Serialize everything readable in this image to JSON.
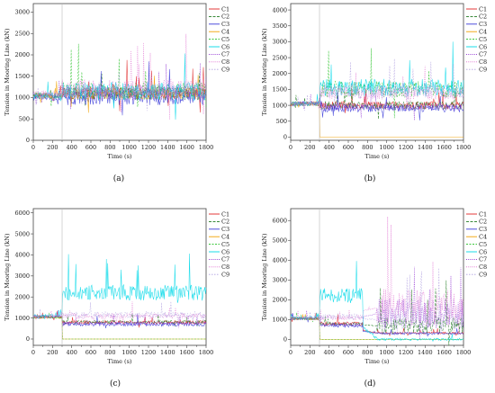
{
  "figure": {
    "series_colors": {
      "C1": "#e02424",
      "C2": "#1e7a1e",
      "C3": "#3a3ad8",
      "C4": "#f0a000",
      "C5": "#22c022",
      "C6": "#00d8e8",
      "C7": "#8c2ad0",
      "C8": "#e070d0",
      "C9": "#b0a0e0"
    }
  },
  "chart_data": [
    {
      "panel": "(a)",
      "type": "line",
      "xlabel": "Time (s)",
      "ylabel": "Tension in Mooring Line (kN)",
      "xlim": [
        0,
        1800
      ],
      "ylim": [
        0,
        3200
      ],
      "xticks": [
        0,
        100,
        200,
        300,
        400,
        500,
        600,
        700,
        800,
        900,
        1000,
        1100,
        1200,
        1300,
        1400,
        1500,
        1600,
        1700,
        1800
      ],
      "xtick_labels": [
        "0",
        "200",
        "400",
        "600",
        "800",
        "1000",
        "1200",
        "1400",
        "1600",
        "1800"
      ],
      "yticks": [
        0,
        500,
        1000,
        1500,
        2000,
        2500,
        3000
      ],
      "event_line_x": 300,
      "legend": [
        "C1",
        "C2",
        "C3",
        "C4",
        "C5",
        "C6",
        "C7",
        "C8",
        "C9"
      ],
      "series": [
        {
          "name": "C1",
          "base": 1100,
          "pre": 1050,
          "amp": 140
        },
        {
          "name": "C2",
          "base": 1100,
          "pre": 1050,
          "amp": 160
        },
        {
          "name": "C3",
          "base": 1000,
          "pre": 1000,
          "amp": 180
        },
        {
          "name": "C4",
          "base": 1100,
          "pre": 1050,
          "amp": 140
        },
        {
          "name": "C5",
          "base": 1150,
          "pre": 1050,
          "amp": 200
        },
        {
          "name": "C6",
          "base": 1150,
          "pre": 1050,
          "amp": 210
        },
        {
          "name": "C7",
          "base": 1100,
          "pre": 1050,
          "amp": 160
        },
        {
          "name": "C8",
          "base": 1200,
          "pre": 1100,
          "amp": 230
        },
        {
          "name": "C9",
          "base": 1150,
          "pre": 1050,
          "amp": 180
        }
      ]
    },
    {
      "panel": "(b)",
      "type": "line",
      "xlabel": "Time (s)",
      "ylabel": "Tension in Mooring Line (kN)",
      "xlim": [
        0,
        1800
      ],
      "ylim": [
        -100,
        4200
      ],
      "xticks": [
        0,
        100,
        200,
        300,
        400,
        500,
        600,
        700,
        800,
        900,
        1000,
        1100,
        1200,
        1300,
        1400,
        1500,
        1600,
        1700,
        1800
      ],
      "xtick_labels": [
        "0",
        "200",
        "400",
        "600",
        "800",
        "1000",
        "1200",
        "1400",
        "1600",
        "1800"
      ],
      "yticks": [
        0,
        500,
        1000,
        1500,
        2000,
        2500,
        3000,
        3500,
        4000
      ],
      "event_line_x": 300,
      "legend": [
        "C1",
        "C2",
        "C3",
        "C4",
        "C5",
        "C6",
        "C7",
        "C8",
        "C9"
      ],
      "series": [
        {
          "name": "C1",
          "base": 1000,
          "pre": 1050,
          "amp": 120
        },
        {
          "name": "C2",
          "base": 1000,
          "pre": 1050,
          "amp": 130
        },
        {
          "name": "C3",
          "base": 900,
          "pre": 1050,
          "amp": 120
        },
        {
          "name": "C4",
          "base": 0,
          "pre": 1050,
          "amp": 0
        },
        {
          "name": "C5",
          "base": 1500,
          "pre": 1050,
          "amp": 260
        },
        {
          "name": "C6",
          "base": 1550,
          "pre": 1050,
          "amp": 280
        },
        {
          "name": "C7",
          "base": 950,
          "pre": 1050,
          "amp": 120
        },
        {
          "name": "C8",
          "base": 1400,
          "pre": 1050,
          "amp": 220
        },
        {
          "name": "C9",
          "base": 1450,
          "pre": 1050,
          "amp": 240
        }
      ]
    },
    {
      "panel": "(c)",
      "type": "line",
      "xlabel": "Time (s)",
      "ylabel": "Tension in Mooring Line (kN)",
      "xlim": [
        0,
        1800
      ],
      "ylim": [
        -300,
        6200
      ],
      "xticks": [
        0,
        100,
        200,
        300,
        400,
        500,
        600,
        700,
        800,
        900,
        1000,
        1100,
        1200,
        1300,
        1400,
        1500,
        1600,
        1700,
        1800
      ],
      "xtick_labels": [
        "0",
        "200",
        "400",
        "600",
        "800",
        "1000",
        "1200",
        "1400",
        "1600",
        "1800"
      ],
      "yticks": [
        0,
        1000,
        2000,
        3000,
        4000,
        5000,
        6000
      ],
      "event_line_x": 300,
      "legend": [
        "C1",
        "C2",
        "C3",
        "C4",
        "C5",
        "C6",
        "C7",
        "C8",
        "C9"
      ],
      "series": [
        {
          "name": "C1",
          "base": 800,
          "pre": 1050,
          "amp": 90
        },
        {
          "name": "C2",
          "base": 800,
          "pre": 1050,
          "amp": 90
        },
        {
          "name": "C3",
          "base": 700,
          "pre": 1050,
          "amp": 90
        },
        {
          "name": "C4",
          "base": 0,
          "pre": 1050,
          "amp": 0
        },
        {
          "name": "C5",
          "base": 0,
          "pre": 1050,
          "amp": 0
        },
        {
          "name": "C6",
          "base": 2200,
          "pre": 1100,
          "amp": 380
        },
        {
          "name": "C7",
          "base": 750,
          "pre": 1050,
          "amp": 90
        },
        {
          "name": "C8",
          "base": 1100,
          "pre": 1100,
          "amp": 140
        },
        {
          "name": "C9",
          "base": 1150,
          "pre": 1100,
          "amp": 150
        }
      ]
    },
    {
      "panel": "(d)",
      "type": "line",
      "xlabel": "Time (s)",
      "ylabel": "Tension in Mooring Line (kN)",
      "xlim": [
        0,
        1800
      ],
      "ylim": [
        -300,
        6600
      ],
      "xticks": [
        0,
        100,
        200,
        300,
        400,
        500,
        600,
        700,
        800,
        900,
        1000,
        1100,
        1200,
        1300,
        1400,
        1500,
        1600,
        1700,
        1800
      ],
      "xtick_labels": [
        "0",
        "200",
        "400",
        "600",
        "800",
        "1000",
        "1200",
        "1400",
        "1600",
        "1800"
      ],
      "yticks": [
        0,
        1000,
        2000,
        3000,
        4000,
        5000,
        6000
      ],
      "event_line_x": 300,
      "second_event_x": 750,
      "legend": [
        "C1",
        "C2",
        "C3",
        "C4",
        "C5",
        "C6",
        "C7",
        "C8",
        "C9"
      ],
      "series": [
        {
          "name": "C1",
          "base": 800,
          "pre": 1050,
          "late": 320,
          "amp": 90
        },
        {
          "name": "C2",
          "base": 800,
          "pre": 1050,
          "late": 700,
          "amp": 90
        },
        {
          "name": "C3",
          "base": 700,
          "pre": 1050,
          "late": 300,
          "amp": 90
        },
        {
          "name": "C4",
          "base": 0,
          "pre": 1050,
          "late": 0,
          "amp": 0
        },
        {
          "name": "C5",
          "base": 0,
          "pre": 1050,
          "late": 0,
          "amp": 0
        },
        {
          "name": "C6",
          "base": 2200,
          "pre": 1100,
          "late": 0,
          "amp": 380
        },
        {
          "name": "C7",
          "base": 750,
          "pre": 1050,
          "late": 1300,
          "amp": 90
        },
        {
          "name": "C8",
          "base": 1100,
          "pre": 1100,
          "late": 1600,
          "amp": 140
        },
        {
          "name": "C9",
          "base": 1150,
          "pre": 1100,
          "late": 1000,
          "amp": 150
        }
      ]
    }
  ]
}
